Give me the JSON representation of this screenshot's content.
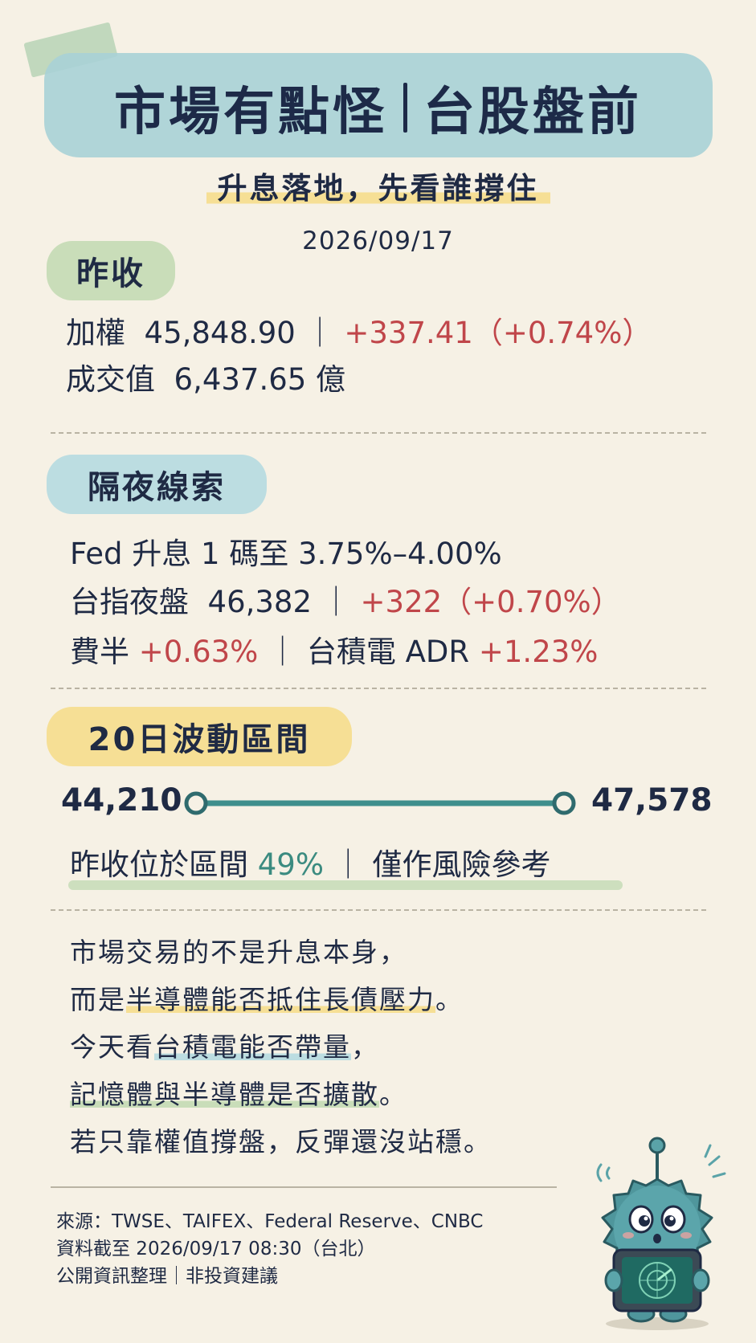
{
  "header": {
    "title_left": "市場有點怪",
    "title_right": "台股盤前",
    "subtitle": "升息落地，先看誰撐住",
    "date": "2026/09/17"
  },
  "yesterday": {
    "heading": "昨收",
    "index_label": "加權",
    "index_value": "45,848.90",
    "index_change": "+337.41（+0.74%）",
    "turnover_label": "成交值",
    "turnover_value": "6,437.65 億"
  },
  "overnight": {
    "heading": "隔夜線索",
    "fed_line": "Fed 升息 1 碼至 3.75%–4.00%",
    "futures_label": "台指夜盤",
    "futures_value": "46,382",
    "futures_change": "+322（+0.70%）",
    "sox_label": "費半",
    "sox_change": "+0.63%",
    "tsmc_label": "台積電 ADR",
    "tsmc_change": "+1.23%"
  },
  "range": {
    "heading": "20日波動區間",
    "low": "44,210",
    "high": "47,578",
    "position_label": "昨收位於區間",
    "position_pct": "49%",
    "position_fraction": 0.49,
    "note": "僅作風險參考"
  },
  "commentary": {
    "l1": "市場交易的不是升息本身，",
    "l2_a": "而是",
    "l2_b": "半導體能否抵住長債壓力",
    "l2_c": "。",
    "l3_a": "今天看",
    "l3_b": "台積電能否帶量",
    "l3_c": "，",
    "l4_a": "記憶體與半導體是否擴散",
    "l4_b": "。",
    "l5": "若只靠權值撐盤，反彈還沒站穩。"
  },
  "footer": {
    "source": "來源：TWSE、TAIFEX、Federal Reserve、CNBC",
    "as_of": "資料截至 2026/09/17 08:30（台北）",
    "disclaimer": "公開資訊整理｜非投資建議"
  },
  "mascot": {
    "icon": "sea-urchin-mascot-radar-icon"
  },
  "colors": {
    "background": "#f6f1e5",
    "text": "#1f2a44",
    "up_red": "#c0464a",
    "teal": "#3b8b80",
    "title_band": "#a9d2d6",
    "pill_green": "#c9ddb9",
    "pill_blue": "#bcdde1",
    "pill_yellow": "#f6df95"
  }
}
